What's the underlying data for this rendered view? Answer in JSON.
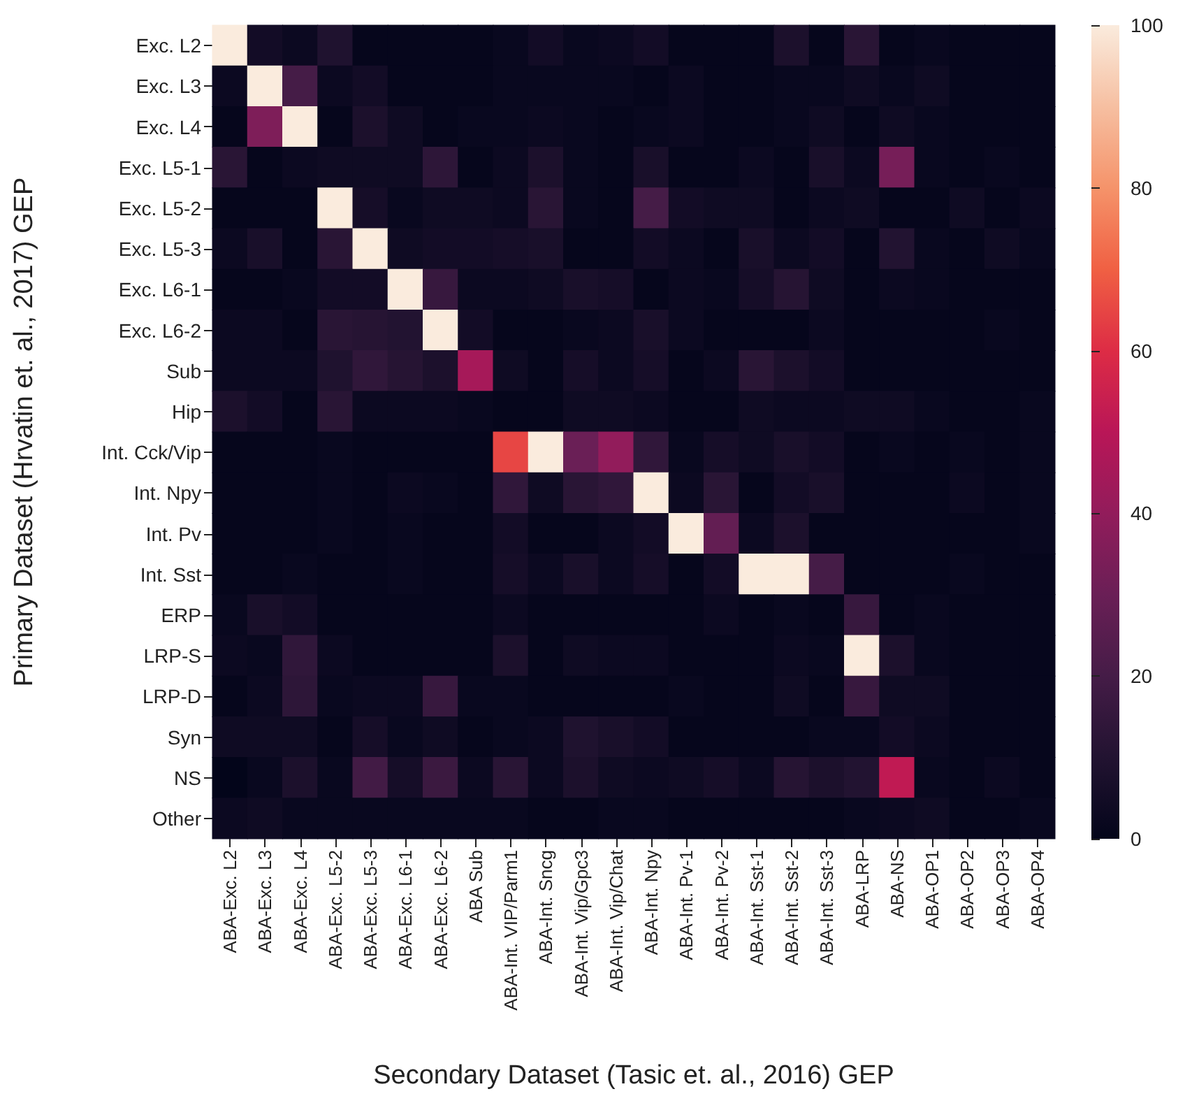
{
  "chart_data": {
    "type": "heatmap",
    "xlabel": "Secondary Dataset (Tasic et. al., 2016) GEP",
    "ylabel": "Primary Dataset (Hrvatin et. al., 2017) GEP",
    "categories": [
      "ABA-Exc. L2",
      "ABA-Exc. L3",
      "ABA-Exc. L4",
      "ABA-Exc. L5-2",
      "ABA-Exc. L5-3",
      "ABA-Exc. L6-1",
      "ABA-Exc. L6-2",
      "ABA Sub",
      "ABA-Int. VIP/Parm1",
      "ABA-Int. Sncg",
      "ABA-Int. Vip/Gpc3",
      "ABA-Int. Vip/Chat",
      "ABA-Int. Npy",
      "ABA-Int. Pv-1",
      "ABA-Int. Pv-2",
      "ABA-Int. Sst-1",
      "ABA-Int. Sst-2",
      "ABA-Int. Sst-3",
      "ABA-LRP",
      "ABA-NS",
      "ABA-OP1",
      "ABA-OP2",
      "ABA-OP3",
      "ABA-OP4"
    ],
    "y_categories": [
      "Exc. L2",
      "Exc. L3",
      "Exc. L4",
      "Exc. L5-1",
      "Exc. L5-2",
      "Exc. L5-3",
      "Exc. L6-1",
      "Exc. L6-2",
      "Sub",
      "Hip",
      "Int. Cck/Vip",
      "Int. Npy",
      "Int. Pv",
      "Int. Sst",
      "ERP",
      "LRP-S",
      "LRP-D",
      "Syn",
      "NS",
      "Other"
    ],
    "cells": [
      [
        100,
        5,
        3,
        9,
        1,
        1,
        1,
        1,
        2,
        5,
        2,
        3,
        5,
        1,
        1,
        1,
        8,
        1,
        12,
        1,
        2,
        1,
        1,
        1
      ],
      [
        3,
        100,
        20,
        3,
        5,
        1,
        1,
        1,
        2,
        2,
        2,
        2,
        1,
        3,
        1,
        1,
        2,
        2,
        4,
        2,
        4,
        1,
        1,
        1
      ],
      [
        1,
        35,
        100,
        1,
        8,
        4,
        1,
        2,
        2,
        3,
        2,
        1,
        2,
        3,
        1,
        1,
        2,
        4,
        1,
        4,
        2,
        1,
        1,
        1
      ],
      [
        12,
        1,
        3,
        4,
        4,
        4,
        13,
        1,
        3,
        8,
        2,
        1,
        7,
        1,
        1,
        3,
        1,
        7,
        3,
        33,
        2,
        1,
        2,
        1
      ],
      [
        1,
        1,
        1,
        100,
        6,
        2,
        4,
        4,
        3,
        12,
        2,
        1,
        20,
        5,
        4,
        4,
        1,
        3,
        4,
        1,
        1,
        4,
        1,
        3
      ],
      [
        3,
        7,
        1,
        12,
        100,
        4,
        5,
        5,
        6,
        7,
        1,
        1,
        5,
        3,
        1,
        7,
        3,
        5,
        1,
        10,
        2,
        1,
        4,
        2
      ],
      [
        1,
        1,
        2,
        5,
        5,
        100,
        16,
        3,
        3,
        4,
        7,
        6,
        1,
        3,
        2,
        6,
        11,
        4,
        1,
        3,
        2,
        1,
        1,
        1
      ],
      [
        3,
        3,
        1,
        12,
        11,
        10,
        100,
        5,
        1,
        1,
        2,
        3,
        7,
        3,
        1,
        1,
        1,
        3,
        1,
        1,
        1,
        1,
        2,
        1
      ],
      [
        3,
        3,
        3,
        9,
        14,
        11,
        8,
        45,
        4,
        1,
        6,
        3,
        6,
        1,
        3,
        12,
        8,
        5,
        1,
        1,
        1,
        1,
        1,
        1
      ],
      [
        8,
        5,
        1,
        12,
        3,
        3,
        3,
        2,
        1,
        1,
        4,
        4,
        3,
        1,
        1,
        4,
        3,
        3,
        4,
        4,
        2,
        1,
        1,
        2
      ],
      [
        1,
        1,
        1,
        2,
        1,
        1,
        1,
        1,
        65,
        100,
        30,
        40,
        14,
        2,
        6,
        4,
        7,
        5,
        1,
        2,
        1,
        2,
        1,
        2
      ],
      [
        1,
        1,
        1,
        2,
        1,
        3,
        2,
        1,
        14,
        4,
        12,
        14,
        100,
        3,
        12,
        1,
        5,
        7,
        1,
        1,
        1,
        3,
        1,
        2
      ],
      [
        1,
        1,
        1,
        2,
        1,
        2,
        1,
        1,
        5,
        1,
        1,
        3,
        5,
        100,
        28,
        3,
        8,
        1,
        1,
        1,
        1,
        1,
        1,
        2
      ],
      [
        1,
        1,
        2,
        1,
        1,
        2,
        1,
        1,
        6,
        3,
        7,
        3,
        6,
        1,
        5,
        100,
        100,
        20,
        1,
        1,
        1,
        2,
        1,
        1
      ],
      [
        2,
        7,
        5,
        1,
        1,
        1,
        1,
        1,
        3,
        1,
        1,
        1,
        1,
        1,
        3,
        1,
        2,
        1,
        16,
        1,
        2,
        1,
        1,
        1
      ],
      [
        3,
        2,
        14,
        3,
        1,
        1,
        1,
        1,
        8,
        1,
        4,
        3,
        3,
        1,
        1,
        1,
        3,
        2,
        100,
        8,
        2,
        1,
        1,
        1
      ],
      [
        1,
        3,
        13,
        2,
        3,
        3,
        16,
        2,
        2,
        1,
        1,
        1,
        1,
        2,
        1,
        1,
        4,
        1,
        16,
        4,
        4,
        1,
        1,
        1
      ],
      [
        4,
        4,
        4,
        1,
        6,
        2,
        4,
        1,
        2,
        3,
        9,
        7,
        5,
        1,
        1,
        1,
        1,
        2,
        2,
        5,
        3,
        1,
        1,
        1
      ],
      [
        0,
        2,
        8,
        2,
        19,
        6,
        17,
        3,
        12,
        3,
        8,
        4,
        3,
        4,
        6,
        3,
        11,
        8,
        10,
        52,
        2,
        1,
        3,
        1
      ],
      [
        3,
        4,
        2,
        2,
        2,
        2,
        2,
        2,
        2,
        1,
        1,
        2,
        2,
        1,
        1,
        1,
        1,
        1,
        2,
        3,
        4,
        1,
        1,
        2
      ]
    ],
    "clim": [
      0,
      100
    ],
    "cticks": [
      0,
      20,
      40,
      60,
      80,
      100
    ]
  }
}
